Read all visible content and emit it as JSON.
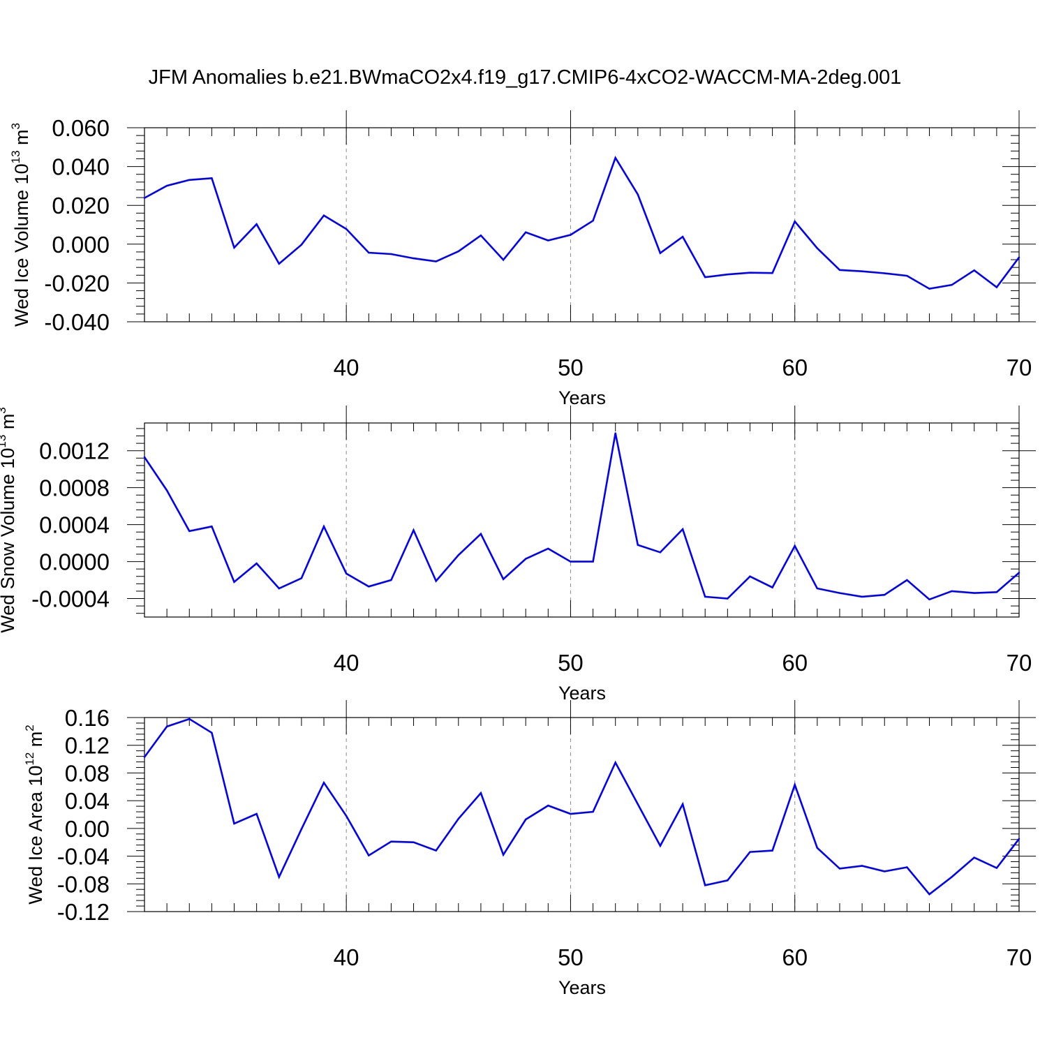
{
  "title": "JFM Anomalies b.e21.BWmaCO2x4.f19_g17.CMIP6-4xCO2-WACCM-MA-2deg.001",
  "line_color": "#0000ff",
  "chart_data": [
    {
      "type": "line",
      "ylabel": "Wed Ice Volume 10",
      "ylabel_exp": "13",
      "ylabel_unit": " m",
      "ylabel_unit_exp": "3",
      "xlabel": "Years",
      "xlim": [
        31,
        70
      ],
      "ylim": [
        -0.04,
        0.06
      ],
      "yticks": [
        -0.04,
        -0.02,
        0.0,
        0.02,
        0.04,
        0.06
      ],
      "ytick_labels": [
        "-0.040",
        "-0.020",
        "0.000",
        "0.020",
        "0.040",
        "0.060"
      ],
      "xticks": [
        40,
        50,
        60,
        70
      ],
      "xtick_labels": [
        "40",
        "50",
        "60",
        "70"
      ],
      "grid_x": true,
      "x": [
        31,
        32,
        33,
        34,
        35,
        36,
        37,
        38,
        39,
        40,
        41,
        42,
        43,
        44,
        45,
        46,
        47,
        48,
        49,
        50,
        51,
        52,
        53,
        54,
        55,
        56,
        57,
        58,
        59,
        60,
        61,
        62,
        63,
        64,
        65,
        66,
        67,
        68,
        69,
        70
      ],
      "y": [
        0.0238,
        0.0301,
        0.0331,
        0.034,
        -0.0018,
        0.0103,
        -0.0101,
        -0.0003,
        0.0148,
        0.0078,
        -0.0044,
        -0.0051,
        -0.0073,
        -0.0089,
        -0.0037,
        0.0045,
        -0.0081,
        0.0061,
        0.0019,
        0.0048,
        0.0121,
        0.0445,
        0.0256,
        -0.0046,
        0.0038,
        -0.017,
        -0.0156,
        -0.0147,
        -0.0149,
        0.0117,
        -0.0021,
        -0.0133,
        -0.014,
        -0.015,
        -0.0163,
        -0.023,
        -0.021,
        -0.0135,
        -0.0222,
        -0.0068
      ]
    },
    {
      "type": "line",
      "ylabel": "Wed Snow Volume 10",
      "ylabel_exp": "13",
      "ylabel_unit": " m",
      "ylabel_unit_exp": "3",
      "xlabel": "Years",
      "xlim": [
        31,
        70
      ],
      "ylim": [
        -0.0006,
        0.0015
      ],
      "yticks": [
        -0.0004,
        0.0,
        0.0004,
        0.0008,
        0.0012
      ],
      "ytick_labels": [
        "-0.0004",
        "0.0000",
        "0.0004",
        "0.0008",
        "0.0012"
      ],
      "xticks": [
        40,
        50,
        60,
        70
      ],
      "xtick_labels": [
        "40",
        "50",
        "60",
        "70"
      ],
      "grid_x": true,
      "x": [
        31,
        32,
        33,
        34,
        35,
        36,
        37,
        38,
        39,
        40,
        41,
        42,
        43,
        44,
        45,
        46,
        47,
        48,
        49,
        50,
        51,
        52,
        53,
        54,
        55,
        56,
        57,
        58,
        59,
        60,
        61,
        62,
        63,
        64,
        65,
        66,
        67,
        68,
        69,
        70
      ],
      "y": [
        0.00113,
        0.00077,
        0.00033,
        0.00038,
        -0.00022,
        -2e-05,
        -0.00029,
        -0.00018,
        0.00038,
        -0.00013,
        -0.00027,
        -0.0002,
        0.00034,
        -0.00021,
        7e-05,
        0.0003,
        -0.00019,
        3e-05,
        0.00014,
        0.0,
        0.0,
        0.00139,
        0.00018,
        0.0001,
        0.00035,
        -0.00038,
        -0.0004,
        -0.00016,
        -0.00028,
        0.00017,
        -0.00029,
        -0.00034,
        -0.00038,
        -0.00036,
        -0.0002,
        -0.00041,
        -0.00032,
        -0.00034,
        -0.00033,
        -0.00012
      ]
    },
    {
      "type": "line",
      "ylabel": "Wed Ice Area 10",
      "ylabel_exp": "12",
      "ylabel_unit": " m",
      "ylabel_unit_exp": "2",
      "xlabel": "Years",
      "xlim": [
        31,
        70
      ],
      "ylim": [
        -0.12,
        0.16
      ],
      "yticks": [
        -0.12,
        -0.08,
        -0.04,
        0.0,
        0.04,
        0.08,
        0.12,
        0.16
      ],
      "ytick_labels": [
        "-0.12",
        "-0.08",
        "-0.04",
        "0.00",
        "0.04",
        "0.08",
        "0.12",
        "0.16"
      ],
      "xticks": [
        40,
        50,
        60,
        70
      ],
      "xtick_labels": [
        "40",
        "50",
        "60",
        "70"
      ],
      "grid_x": true,
      "x": [
        31,
        32,
        33,
        34,
        35,
        36,
        37,
        38,
        39,
        40,
        41,
        42,
        43,
        44,
        45,
        46,
        47,
        48,
        49,
        50,
        51,
        52,
        53,
        54,
        55,
        56,
        57,
        58,
        59,
        60,
        61,
        62,
        63,
        64,
        65,
        66,
        67,
        68,
        69,
        70
      ],
      "y": [
        0.103,
        0.147,
        0.158,
        0.138,
        0.007,
        0.021,
        -0.07,
        -0.001,
        0.066,
        0.018,
        -0.039,
        -0.019,
        -0.02,
        -0.032,
        0.014,
        0.051,
        -0.038,
        0.013,
        0.033,
        0.021,
        0.024,
        0.095,
        0.035,
        -0.025,
        0.035,
        -0.082,
        -0.075,
        -0.034,
        -0.032,
        0.063,
        -0.028,
        -0.058,
        -0.054,
        -0.062,
        -0.056,
        -0.095,
        -0.07,
        -0.042,
        -0.057,
        -0.015
      ]
    }
  ]
}
